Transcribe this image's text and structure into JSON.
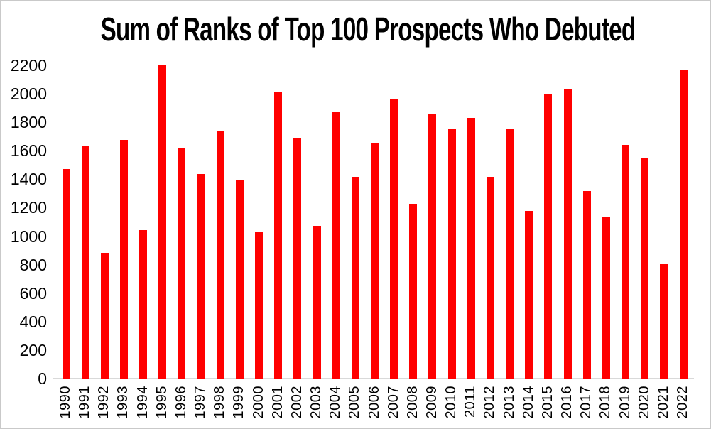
{
  "chart_data": {
    "type": "bar",
    "title": "Sum of Ranks of Top 100 Prospects Who Debuted",
    "categories": [
      "1990",
      "1991",
      "1992",
      "1993",
      "1994",
      "1995",
      "1996",
      "1997",
      "1998",
      "1999",
      "2000",
      "2001",
      "2002",
      "2003",
      "2004",
      "2005",
      "2006",
      "2007",
      "2008",
      "2009",
      "2010",
      "2011",
      "2012",
      "2013",
      "2014",
      "2015",
      "2016",
      "2017",
      "2018",
      "2019",
      "2020",
      "2021",
      "2022"
    ],
    "values": [
      1470,
      1630,
      885,
      1675,
      1045,
      2200,
      1620,
      1435,
      1740,
      1390,
      1035,
      2010,
      1690,
      1075,
      1875,
      1415,
      1655,
      1960,
      1225,
      1855,
      1755,
      1830,
      1415,
      1755,
      1175,
      1995,
      2030,
      1315,
      1135,
      1640,
      1550,
      805,
      2165
    ],
    "xlabel": "",
    "ylabel": "",
    "ylim": [
      0,
      2200
    ],
    "yticks": [
      0,
      200,
      400,
      600,
      800,
      1000,
      1200,
      1400,
      1600,
      1800,
      2000,
      2200
    ],
    "grid": false,
    "legend": "none",
    "bar_color": "#ff0000",
    "background_color": "#ffffff",
    "axis_line_color": "#d9d9d9",
    "text_color": "#000000",
    "frame_border_color": "#c9c9c9"
  }
}
